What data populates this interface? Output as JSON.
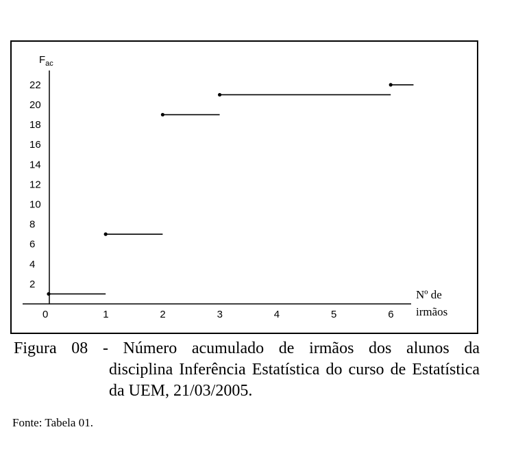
{
  "chart_data": {
    "type": "step",
    "ylabel": "F",
    "ylabel_subscript": "ac",
    "xlabel_line1": "Nº de",
    "xlabel_line2": "irmãos",
    "x_ticks": [
      0,
      1,
      2,
      3,
      4,
      5,
      6
    ],
    "y_ticks": [
      2,
      4,
      6,
      8,
      10,
      12,
      14,
      16,
      18,
      20,
      22
    ],
    "xlim": [
      0,
      6.4
    ],
    "ylim": [
      0,
      22
    ],
    "steps": [
      {
        "x_start": 0,
        "x_end": 1,
        "y": 1
      },
      {
        "x_start": 1,
        "x_end": 2,
        "y": 7
      },
      {
        "x_start": 2,
        "x_end": 3,
        "y": 19
      },
      {
        "x_start": 3,
        "x_end": 6,
        "y": 21
      },
      {
        "x_start": 6,
        "x_end": 6.4,
        "y": 22
      }
    ]
  },
  "caption": {
    "lead": "Figura 08 - Número acumulado de irmãos dos alunos da",
    "rest": "disciplina Inferência Estatística do curso de Estatística da UEM, 21/03/2005."
  },
  "source": "Fonte: Tabela 01."
}
